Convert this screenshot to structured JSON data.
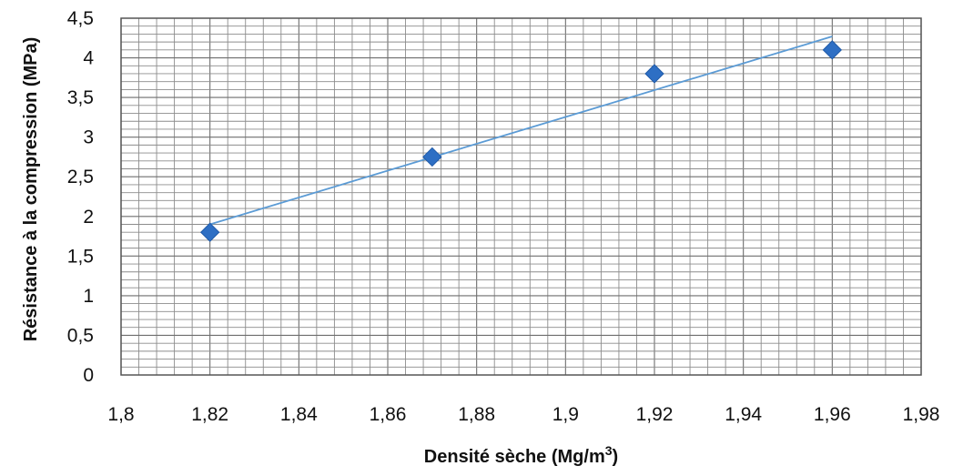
{
  "chart_data": {
    "type": "scatter",
    "xlabel": "Densité sèche (Mg/m",
    "xlabel_sup": "3",
    "xlabel_end": ")",
    "ylabel": "Résistance à la compression  (MPa)",
    "xlim": [
      1.8,
      1.98
    ],
    "ylim": [
      0,
      4.5
    ],
    "x_ticks": [
      1.8,
      1.82,
      1.84,
      1.86,
      1.88,
      1.9,
      1.92,
      1.94,
      1.96,
      1.98
    ],
    "x_tick_labels": [
      "1,8",
      "1,82",
      "1,84",
      "1,86",
      "1,88",
      "1,9",
      "1,92",
      "1,94",
      "1,96",
      "1,98"
    ],
    "y_ticks": [
      0,
      0.5,
      1,
      1.5,
      2,
      2.5,
      3,
      3.5,
      4,
      4.5
    ],
    "y_tick_labels": [
      "0",
      "0,5",
      "1",
      "1,5",
      "2",
      "2,5",
      "3",
      "3,5",
      "4",
      "4,5"
    ],
    "grid": true,
    "legend": false,
    "series": [
      {
        "x": [
          1.82,
          1.87,
          1.92,
          1.96
        ],
        "y": [
          1.8,
          2.75,
          3.8,
          4.1
        ],
        "marker": "diamond",
        "color": "#2e6fc4"
      }
    ],
    "trendline": {
      "type": "linear",
      "x": [
        1.82,
        1.96
      ],
      "y": [
        1.9,
        4.27
      ],
      "color": "#5b9bd5"
    }
  }
}
